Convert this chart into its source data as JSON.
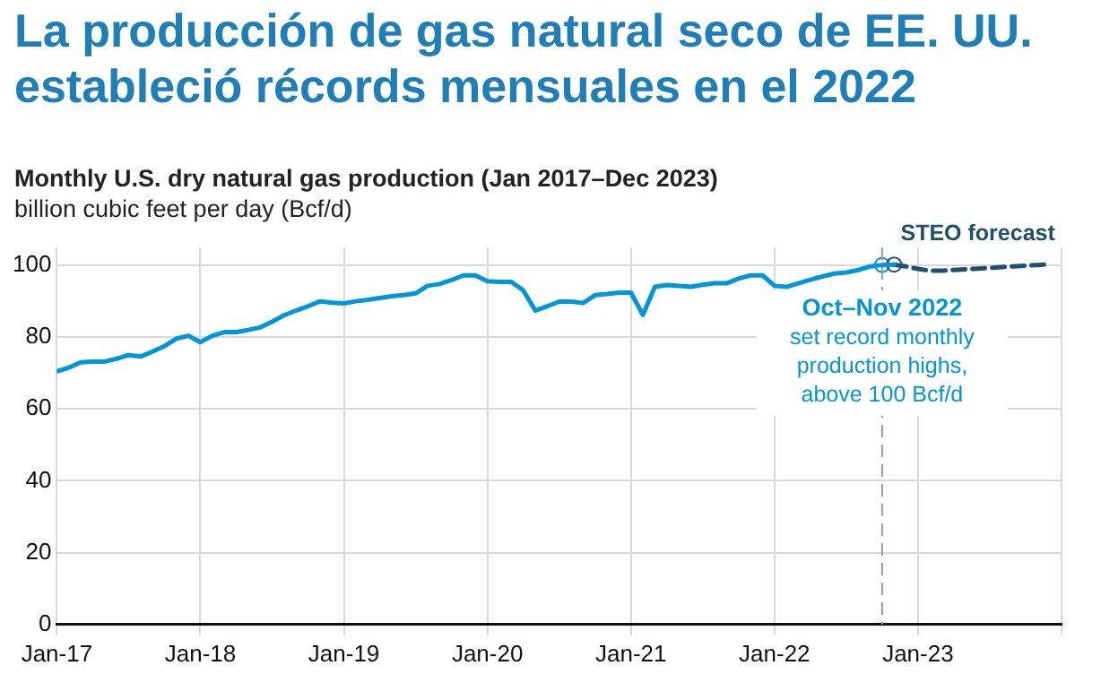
{
  "chart_data": {
    "type": "line",
    "title": "La producción de gas natural seco de EE. UU. estableció récords mensuales en el 2022",
    "subtitle": "Monthly U.S. dry natural gas production (Jan 2017–Dec 2023)",
    "ylabel": "billion cubic feet per day (Bcf/d)",
    "xlim": [
      "2017-01",
      "2024-01"
    ],
    "xticks": [
      {
        "value": "2017-01",
        "label": "Jan-17"
      },
      {
        "value": "2018-01",
        "label": "Jan-18"
      },
      {
        "value": "2019-01",
        "label": "Jan-19"
      },
      {
        "value": "2020-01",
        "label": "Jan-20"
      },
      {
        "value": "2021-01",
        "label": "Jan-21"
      },
      {
        "value": "2022-01",
        "label": "Jan-22"
      },
      {
        "value": "2023-01",
        "label": "Jan-23"
      },
      {
        "value": "2024-01",
        "label": null
      }
    ],
    "ylim": [
      0,
      105
    ],
    "yticks": [
      0,
      20,
      40,
      60,
      80,
      100
    ],
    "grid": true,
    "legend": false,
    "marker": "none",
    "ref_lines": [
      {
        "axis": "x",
        "value": "2022-10",
        "color": "#999999",
        "line_style": "dashed"
      }
    ],
    "annotations": [
      {
        "text": "Oct–Nov 2022\nset record monthly\nproduction highs,\nabove 100 Bcf/d",
        "x": "2022-10",
        "y": 100.1
      }
    ],
    "series": [
      {
        "color": "#0096d7",
        "line_style": "solid",
        "x": [
          "2017-01",
          "2017-02",
          "2017-03",
          "2017-04",
          "2017-05",
          "2017-06",
          "2017-07",
          "2017-08",
          "2017-09",
          "2017-10",
          "2017-11",
          "2017-12",
          "2018-01",
          "2018-02",
          "2018-03",
          "2018-04",
          "2018-05",
          "2018-06",
          "2018-07",
          "2018-08",
          "2018-09",
          "2018-10",
          "2018-11",
          "2018-12",
          "2019-01",
          "2019-02",
          "2019-03",
          "2019-04",
          "2019-05",
          "2019-06",
          "2019-07",
          "2019-08",
          "2019-09",
          "2019-10",
          "2019-11",
          "2019-12",
          "2020-01",
          "2020-02",
          "2020-03",
          "2020-04",
          "2020-05",
          "2020-06",
          "2020-07",
          "2020-08",
          "2020-09",
          "2020-10",
          "2020-11",
          "2020-12",
          "2021-01",
          "2021-02",
          "2021-03",
          "2021-04",
          "2021-05",
          "2021-06",
          "2021-07",
          "2021-08",
          "2021-09",
          "2021-10",
          "2021-11",
          "2021-12",
          "2022-01",
          "2022-02",
          "2022-03",
          "2022-04",
          "2022-05",
          "2022-06",
          "2022-07",
          "2022-08",
          "2022-09",
          "2022-10",
          "2022-11"
        ],
        "values": [
          70.5,
          71.5,
          73,
          73.2,
          73.2,
          74,
          75,
          74.6,
          76,
          77.5,
          79.6,
          80.4,
          78.6,
          80.4,
          81.4,
          81.4,
          82,
          82.7,
          84.3,
          86.1,
          87.4,
          88.6,
          90,
          89.6,
          89.4,
          90,
          90.4,
          90.9,
          91.4,
          91.7,
          92.2,
          94.3,
          94.8,
          95.9,
          97.2,
          97.2,
          95.6,
          95.4,
          95.4,
          93,
          87.4,
          88.6,
          89.9,
          89.9,
          89.5,
          91.7,
          92,
          92.4,
          92.4,
          86.2,
          94,
          94.5,
          94.3,
          94,
          94.6,
          95,
          95,
          96.3,
          97.2,
          97.2,
          94.3,
          94,
          95,
          96,
          96.9,
          97.7,
          98,
          98.7,
          99.7,
          100.1,
          100.2
        ]
      },
      {
        "name": "STEO forecast",
        "color": "#1d4f6e",
        "line_style": "dashed",
        "x": [
          "2022-11",
          "2022-12",
          "2023-01",
          "2023-02",
          "2023-03",
          "2023-04",
          "2023-05",
          "2023-06",
          "2023-07",
          "2023-08",
          "2023-09",
          "2023-10",
          "2023-11",
          "2023-12"
        ],
        "values": [
          100.2,
          99.7,
          99.0,
          98.5,
          98.5,
          98.7,
          98.9,
          99.1,
          99.3,
          99.5,
          99.7,
          99.9,
          100.1,
          100.3
        ]
      },
      {
        "type": "scatter",
        "marker": "circle",
        "x": [
          "2022-10",
          "2022-11"
        ],
        "colors": [
          "#0096d7",
          "#1d4f6e"
        ],
        "values": [
          100.1,
          100.2
        ]
      }
    ]
  }
}
